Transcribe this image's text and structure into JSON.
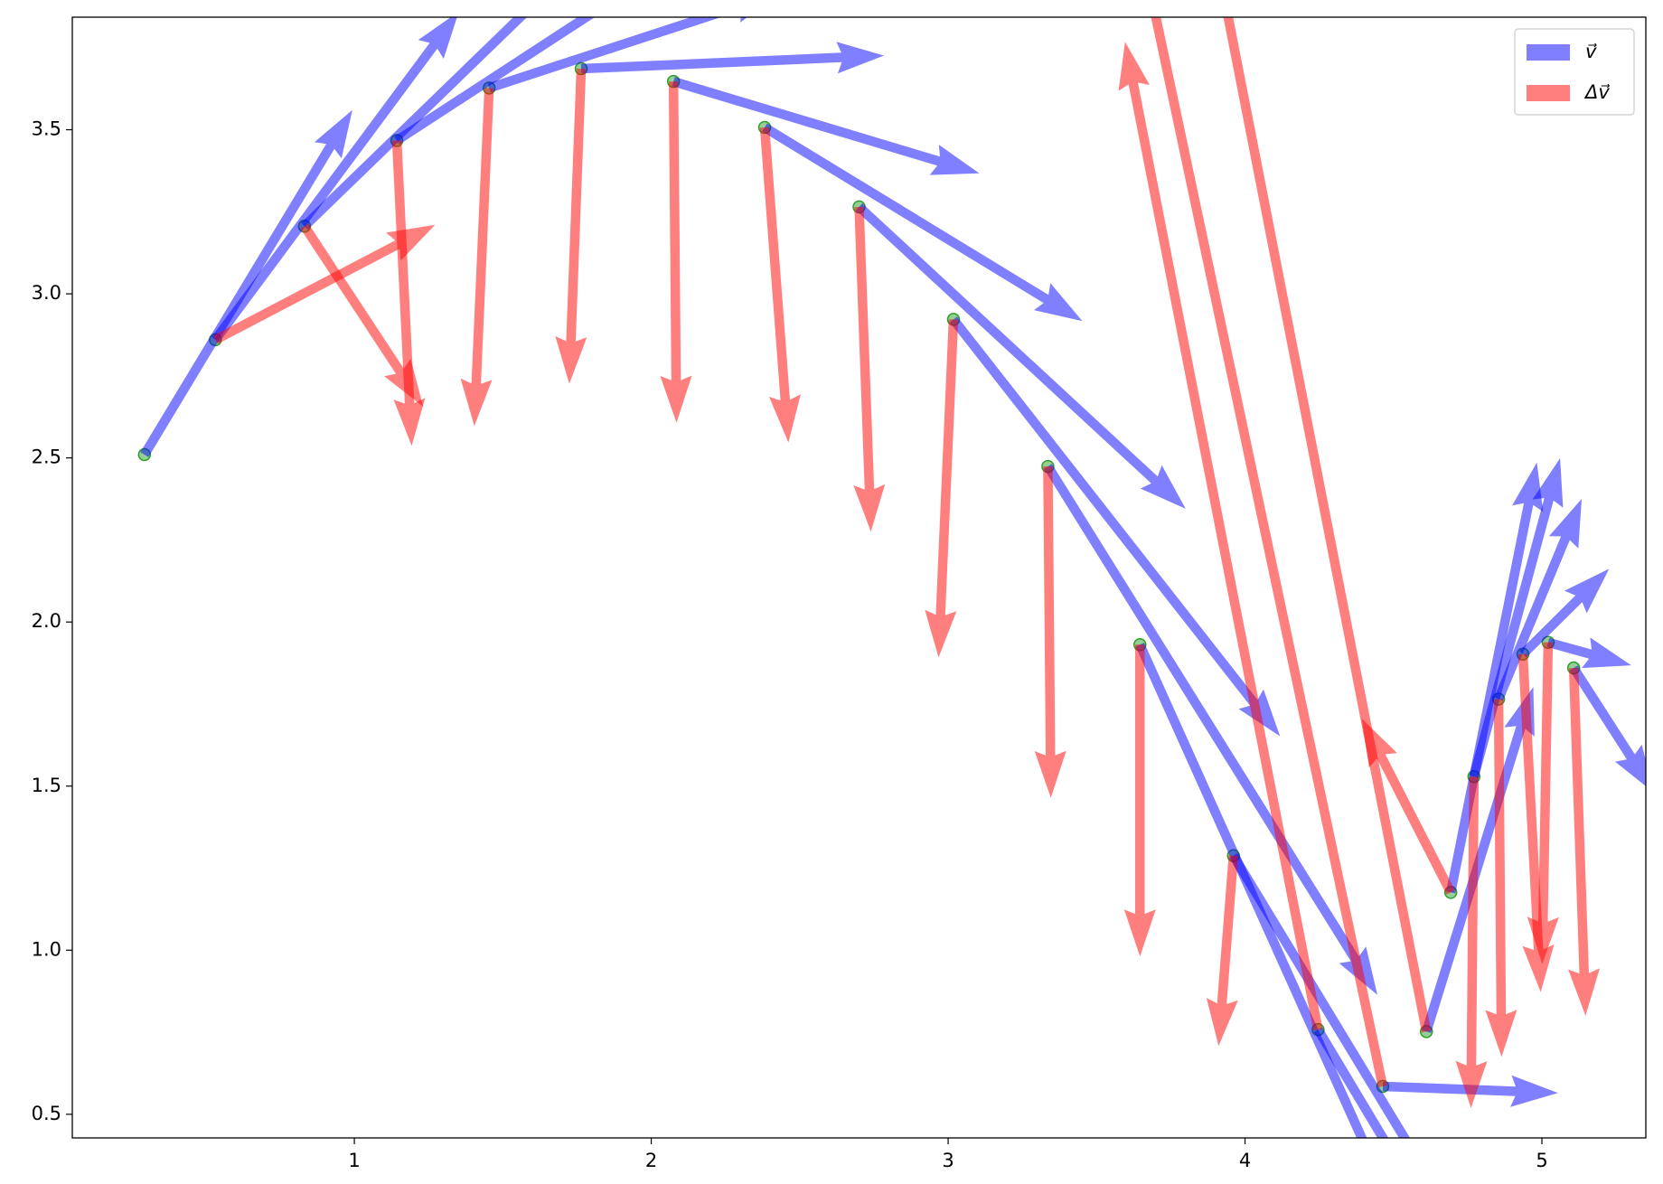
{
  "chart_data": {
    "type": "quiver",
    "x": [
      0.293,
      0.532,
      0.832,
      1.143,
      1.454,
      1.764,
      2.075,
      2.382,
      2.7,
      3.018,
      3.336,
      3.646,
      3.961,
      4.246,
      4.464,
      4.611,
      4.693,
      4.771,
      4.854,
      4.936,
      5.021,
      5.107
    ],
    "y": [
      2.51,
      2.86,
      3.206,
      3.467,
      3.627,
      3.686,
      3.647,
      3.507,
      3.265,
      2.922,
      2.474,
      1.931,
      1.288,
      0.758,
      0.585,
      0.752,
      1.176,
      1.529,
      1.765,
      1.902,
      1.938,
      1.86
    ],
    "point_color": "#2ca02c",
    "series": [
      {
        "name": "v⃗",
        "color": "#0000ff",
        "u": [
          0.7,
          0.82,
          0.89,
          0.95,
          0.98,
          1.02,
          1.03,
          1.07,
          1.1,
          1.1,
          1.11,
          0.89,
          0.71,
          0.43,
          0.59,
          0.36,
          0.29,
          0.29,
          0.28,
          0.29,
          0.28,
          0.27
        ],
        "v": [
          1.05,
          1.0,
          0.78,
          0.56,
          0.29,
          0.04,
          -0.28,
          -0.59,
          -0.92,
          -1.27,
          -1.61,
          -1.79,
          -1.06,
          -0.65,
          -0.02,
          1.05,
          1.31,
          0.97,
          0.61,
          0.26,
          -0.07,
          -0.38
        ]
      },
      {
        "name": "Δv⃗",
        "color": "#ff0000",
        "u": [
          null,
          0.74,
          0.4,
          0.05,
          -0.05,
          -0.04,
          0.01,
          0.08,
          0.04,
          -0.05,
          0.01,
          0.0,
          -0.05,
          -0.65,
          -0.8,
          -0.7,
          -0.3,
          -0.01,
          0.01,
          0.06,
          -0.02,
          0.04
        ],
        "v": [
          null,
          0.35,
          -0.55,
          -0.93,
          -1.03,
          -0.96,
          -1.04,
          -0.96,
          -0.99,
          -1.03,
          -1.01,
          -0.95,
          -0.58,
          3.01,
          3.41,
          3.24,
          0.53,
          -1.01,
          -1.09,
          -1.03,
          -0.98,
          -1.06
        ]
      }
    ],
    "xlim": [
      0.05,
      5.35
    ],
    "ylim": [
      0.428,
      3.843
    ],
    "xticks": [
      1,
      2,
      3,
      4,
      5
    ],
    "yticks": [
      0.5,
      {
        "value": 1,
        "label": "1.0"
      },
      1.5,
      {
        "value": 2,
        "label": "2.0"
      },
      2.5,
      {
        "value": 3,
        "label": "3.0"
      },
      3.5
    ],
    "legend": "upper right"
  }
}
